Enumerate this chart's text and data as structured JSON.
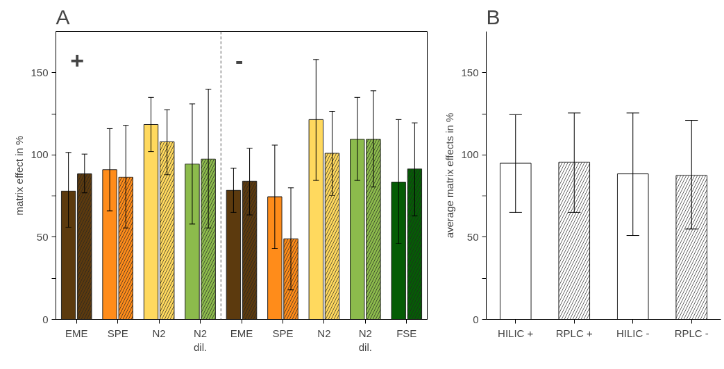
{
  "chart_data": [
    {
      "type": "bar",
      "title": "A",
      "ylabel": "matrix effect in %",
      "categories": [
        "EME",
        "SPE",
        "N2",
        "N2\ndil.",
        "EME",
        "SPE",
        "N2",
        "N2\ndil.",
        "FSE"
      ],
      "series": [
        {
          "colors": [
            "#5c3a0e",
            "#ff8c1a",
            "#ffd95e",
            "#8cbb4c",
            "#5c3a0e",
            "#ff8c1a",
            "#ffd95e",
            "#8cbb4c",
            "#055c05"
          ],
          "values": [
            78,
            91,
            118.5,
            94.5,
            78.5,
            74.5,
            121.5,
            109.5,
            83.5
          ],
          "errors": [
            [
              56,
              101.5
            ],
            [
              66,
              116
            ],
            [
              102,
              135
            ],
            [
              58,
              131
            ],
            [
              65,
              92
            ],
            [
              43,
              106
            ],
            [
              84.5,
              158
            ],
            [
              84.5,
              135
            ],
            [
              46,
              121.5
            ]
          ]
        },
        {
          "colors": [
            "#5c3a0e",
            "#ff8c1a",
            "#ffd95e",
            "#8cbb4c",
            "#5c3a0e",
            "#ff8c1a",
            "#ffd95e",
            "#8cbb4c",
            "#055c05"
          ],
          "values": [
            88.5,
            86.5,
            108,
            97.5,
            84,
            49,
            101,
            109.5,
            91.5
          ],
          "errors": [
            [
              77,
              100.5
            ],
            [
              55.5,
              118
            ],
            [
              88,
              127.5
            ],
            [
              55.5,
              140
            ],
            [
              63.5,
              104
            ],
            [
              18,
              80
            ],
            [
              75.5,
              126.5
            ],
            [
              80.5,
              139
            ],
            [
              63,
              119.5
            ]
          ]
        }
      ],
      "ylim": [
        0,
        175
      ],
      "yticks": [
        0,
        {
          "value": 25,
          "label": null
        },
        50,
        {
          "value": 75,
          "label": null
        },
        100,
        {
          "value": 125,
          "label": null
        },
        150
      ],
      "annotations": [
        "+",
        "-"
      ],
      "grid": false
    },
    {
      "type": "bar",
      "title": "B",
      "ylabel": "average matrix effects in %",
      "categories": [
        "HILIC +",
        "RPLC +",
        "HILIC -",
        "RPLC -"
      ],
      "series": [
        {
          "color": "#ffffff",
          "values": [
            95,
            null,
            88.5,
            null
          ],
          "errors": [
            [
              65,
              124.5
            ],
            null,
            [
              51,
              125.5
            ],
            null
          ]
        },
        {
          "color": "#ffffff",
          "values": [
            null,
            95.5,
            null,
            87.5
          ],
          "errors": [
            null,
            [
              65,
              125.5
            ],
            null,
            [
              55,
              121
            ]
          ]
        }
      ],
      "ylim": [
        0,
        175
      ],
      "yticks": [
        0,
        {
          "value": 25,
          "label": null
        },
        50,
        {
          "value": 75,
          "label": null
        },
        100,
        {
          "value": 125,
          "label": null
        },
        150
      ],
      "grid": false
    }
  ]
}
